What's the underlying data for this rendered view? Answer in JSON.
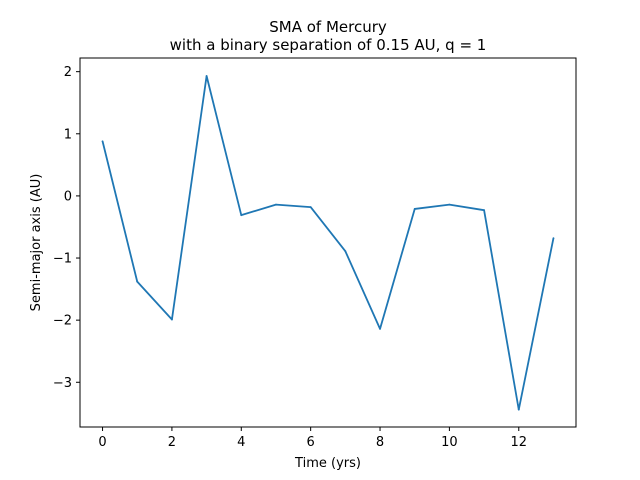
{
  "chart_data": {
    "type": "line",
    "title": "SMA of Mercury",
    "subtitle": "with a binary separation of 0.15 AU, q = 1",
    "xlabel": "Time (yrs)",
    "ylabel": "Semi-major axis (AU)",
    "xlim": [
      -0.65,
      13.65
    ],
    "ylim": [
      -3.72,
      2.22
    ],
    "xticks": [
      0,
      2,
      4,
      6,
      8,
      10,
      12
    ],
    "yticks": [
      -3,
      -2,
      -1,
      0,
      1,
      2
    ],
    "grid": false,
    "series": [
      {
        "color": "#1f77b4",
        "x": [
          0,
          1,
          2,
          3,
          4,
          5,
          6,
          7,
          8,
          9,
          10,
          11,
          12,
          13
        ],
        "y": [
          0.88,
          -1.38,
          -1.99,
          1.93,
          -0.31,
          -0.14,
          -0.18,
          -0.89,
          -2.14,
          -0.21,
          -0.14,
          -0.23,
          -3.44,
          -0.68
        ]
      }
    ]
  }
}
